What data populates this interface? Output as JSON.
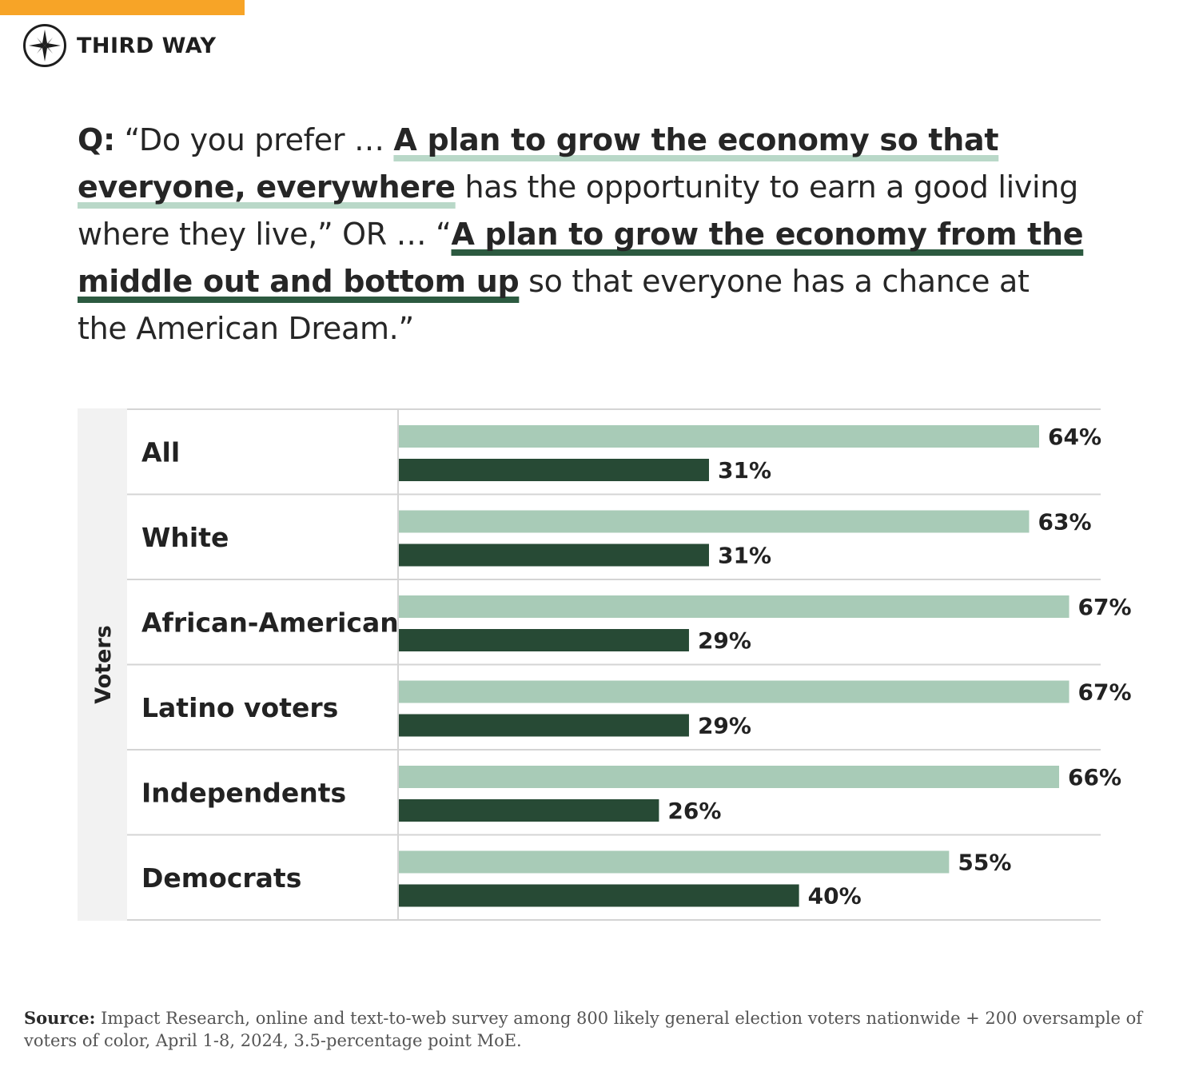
{
  "brand": {
    "name": "THIRD WAY",
    "accent_color": "#f7a427",
    "logo_icon": "compass-star-icon"
  },
  "question": {
    "prefix": "Q:",
    "part1": " “Do you prefer … ",
    "option_a": "A plan to grow the economy so that everyone, everywhere",
    "part2": " has the opportunity to earn a good living where they live,” OR … “",
    "option_b": "A plan to grow the economy from the middle out and bottom up",
    "part3": " so that everyone has a chance at the American Dream.”"
  },
  "chart_data": {
    "type": "bar",
    "orientation": "horizontal",
    "group_label": "Voters",
    "categories": [
      "All",
      "White",
      "African-American",
      "Latino voters",
      "Independents",
      "Democrats"
    ],
    "series": [
      {
        "values": [
          64,
          63,
          67,
          67,
          66,
          55
        ],
        "color": "#a8cbb7"
      },
      {
        "values": [
          31,
          31,
          29,
          29,
          26,
          40
        ],
        "color": "#274a35"
      }
    ],
    "value_suffix": "%",
    "xlim": [
      0,
      70
    ],
    "grid": false
  },
  "source": {
    "label": "Source:",
    "text": " Impact Research, online and text-to-web survey among 800 likely general election voters nationwide + 200 oversample of voters of color, April 1-8, 2024, 3.5-percentage point MoE."
  }
}
